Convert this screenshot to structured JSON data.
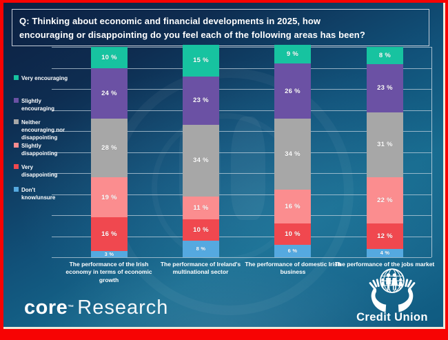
{
  "slide": {
    "title": "Q: Thinking about economic and financial developments in 2025, how encouraging or disappointing do you feel each of the following areas has been?",
    "title_lines": [
      "Q: Thinking about economic and financial developments in 2025, how",
      "encouraging or disappointing do you feel each of the following areas has been?"
    ]
  },
  "chart_data": {
    "type": "bar",
    "stacked": true,
    "unit": "%",
    "title": "Q: Thinking about economic and financial developments in 2025, how encouraging or disappointing do you feel each of the following areas has been?",
    "categories": [
      "The performance of the Irish economy in terms of economic growth",
      "The performance of Ireland's multinational sector",
      "The performance of domestic Irish business",
      "The performance of the jobs market"
    ],
    "series": [
      {
        "name": "Very encouraging",
        "color": "#17c3a0",
        "values": [
          10,
          15,
          9,
          8
        ]
      },
      {
        "name": "Slightly encouraging",
        "color": "#6b51a4",
        "values": [
          24,
          23,
          26,
          23
        ]
      },
      {
        "name": "Neither encouraging nor disappointing",
        "color": "#a7a7a7",
        "values": [
          28,
          34,
          34,
          31
        ]
      },
      {
        "name": "Slightly disappointing",
        "color": "#fb8d8f",
        "values": [
          19,
          11,
          16,
          22
        ]
      },
      {
        "name": "Very disappointing",
        "color": "#f0484f",
        "values": [
          16,
          10,
          10,
          12
        ]
      },
      {
        "name": "Don't know/unsure",
        "color": "#55a9e0",
        "values": [
          3,
          8,
          6,
          4
        ]
      }
    ],
    "ylim": [
      0,
      100
    ],
    "gridlines_every": 10,
    "grid": true,
    "legend_position": "left",
    "value_label_format": "{v} %"
  },
  "legend": {
    "items": [
      {
        "label": "Very encouraging",
        "color": "#17c3a0"
      },
      {
        "label": "Slightly\nencouraging",
        "color": "#6b51a4"
      },
      {
        "label": "Neither\nencouraging nor\ndisappointing",
        "color": "#a7a7a7"
      },
      {
        "label": "Slightly\ndisappointing",
        "color": "#fb8d8f"
      },
      {
        "label": "Very\ndisappointing",
        "color": "#f0484f"
      },
      {
        "label": "Don't\nknow/unsure",
        "color": "#55a9e0"
      }
    ]
  },
  "footer": {
    "brand": {
      "bold": "core",
      "tm": "™",
      "rest": "Research"
    },
    "credit_union": {
      "label": "Credit Union"
    }
  },
  "colors": {
    "frame_border": "#f70303",
    "inner_edge_line": "#efe9da",
    "background_dark": "#0c2042",
    "background_light": "#166a8e",
    "gridline": "#c6d5e0",
    "title_border": "#c6cdd8",
    "text": "#ffffff"
  }
}
